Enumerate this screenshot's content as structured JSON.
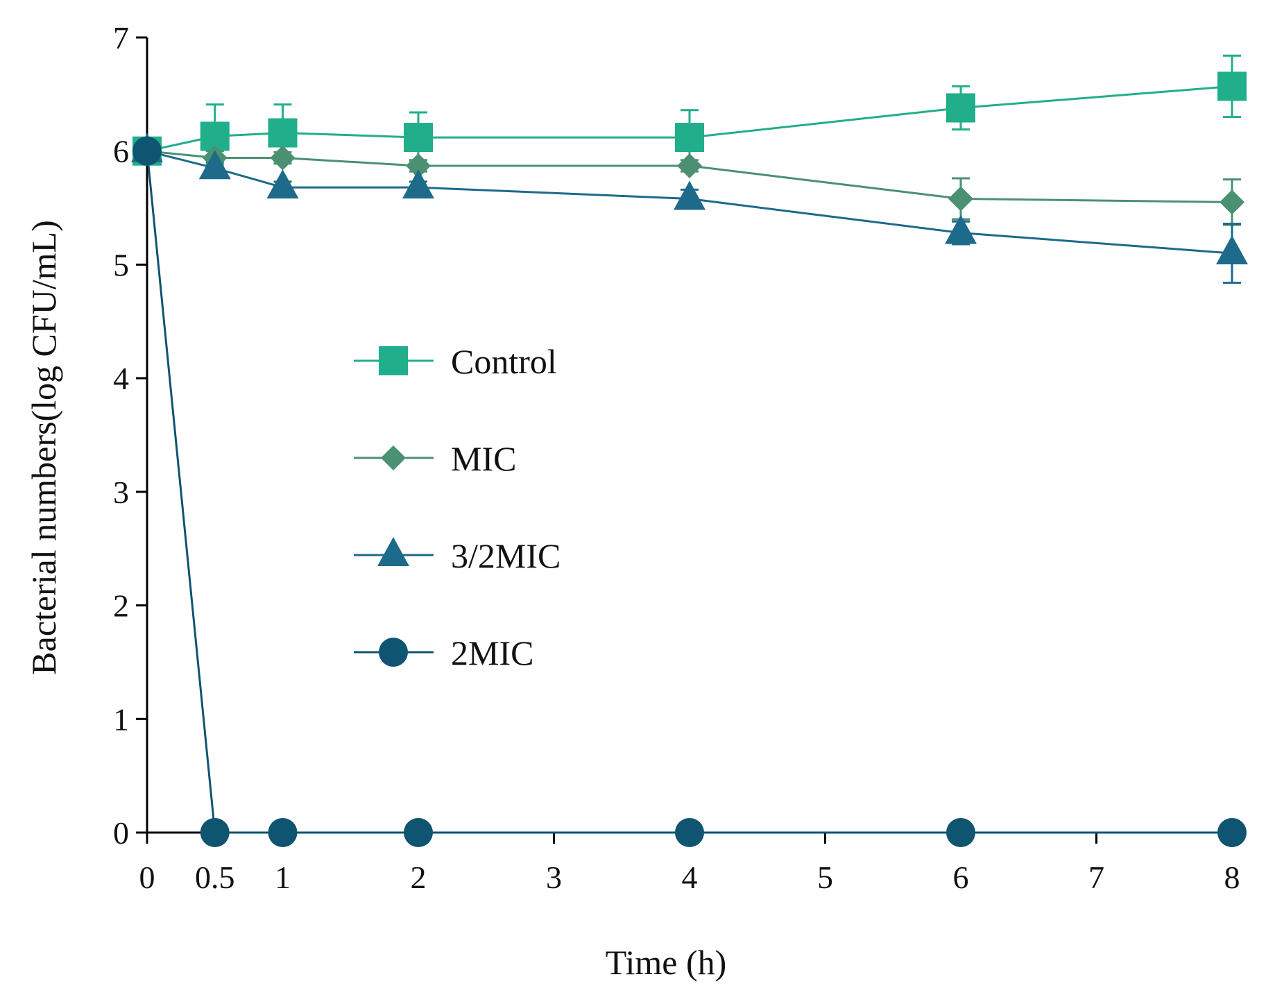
{
  "chart_data": {
    "type": "line",
    "title": "",
    "xlabel": "Time (h)",
    "ylabel": "Bacterial numbers(log CFU/mL)",
    "xlim": [
      0,
      8
    ],
    "ylim": [
      0,
      7
    ],
    "x": [
      0,
      0.5,
      1,
      2,
      4,
      6,
      8
    ],
    "xticks": [
      0,
      0.5,
      1,
      2,
      3,
      4,
      5,
      6,
      7,
      8
    ],
    "xtick_labels": [
      "0",
      "0.5",
      "1",
      "2",
      "3",
      "4",
      "5",
      "6",
      "7",
      "8"
    ],
    "yticks": [
      0,
      1,
      2,
      3,
      4,
      5,
      6,
      7
    ],
    "ytick_labels": [
      "0",
      "1",
      "2",
      "3",
      "4",
      "5",
      "6",
      "7"
    ],
    "grid": false,
    "legend_position": "center",
    "series": [
      {
        "name": "Control",
        "marker": "square",
        "color": "#21AE8A",
        "values": [
          6.0,
          6.13,
          6.16,
          6.12,
          6.12,
          6.38,
          6.57
        ],
        "errors": [
          0,
          0.28,
          0.25,
          0.22,
          0.24,
          0.19,
          0.27
        ]
      },
      {
        "name": "MIC",
        "marker": "diamond",
        "color": "#4B9072",
        "values": [
          6.0,
          5.94,
          5.94,
          5.87,
          5.87,
          5.58,
          5.55
        ],
        "errors": [
          0,
          0.06,
          0.05,
          0.05,
          0.05,
          0.18,
          0.2
        ]
      },
      {
        "name": "3/2MIC",
        "marker": "triangle",
        "color": "#1E6A8A",
        "values": [
          6.0,
          5.85,
          5.68,
          5.68,
          5.58,
          5.28,
          5.1
        ],
        "errors": [
          0,
          0.05,
          0.05,
          0.05,
          0.08,
          0.1,
          0.26
        ]
      },
      {
        "name": "2MIC",
        "marker": "circle",
        "color": "#0F5470",
        "values": [
          6.0,
          0,
          0,
          0,
          0,
          0,
          0
        ],
        "errors": [
          0,
          0,
          0,
          0,
          0,
          0,
          0
        ]
      }
    ]
  }
}
